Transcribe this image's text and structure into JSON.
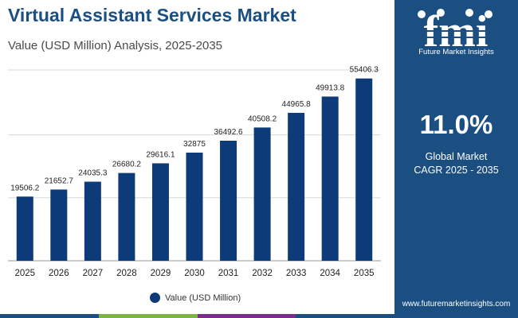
{
  "header": {
    "title": "Virtual Assistant Services Market",
    "subtitle": "Value (USD Million) Analysis, 2025-2035"
  },
  "chart_data": {
    "type": "bar",
    "categories": [
      "2025",
      "2026",
      "2027",
      "2028",
      "2029",
      "2030",
      "2031",
      "2032",
      "2033",
      "2034",
      "2035"
    ],
    "series": [
      {
        "name": "Value (USD Million)",
        "values": [
          19506.2,
          21652.7,
          24035.3,
          26680.2,
          29616.1,
          32875,
          36492.6,
          40508.2,
          44965.8,
          49913.8,
          55406.3
        ],
        "labels": [
          "19506.2",
          "21652.7",
          "24035.3",
          "26680.2",
          "29616.1",
          "32875",
          "36492.6",
          "40508.2",
          "44965.8",
          "49913.8",
          "55406.3"
        ]
      }
    ],
    "ylim": [
      0,
      58000
    ],
    "grid": true,
    "legend": "bottom"
  },
  "side_panel": {
    "brand_logo_text": "fmi",
    "brand_name": "Future Market Insights",
    "cagr_value": "11.0%",
    "cagr_line1": "Global Market",
    "cagr_line2": "CAGR 2025 - 2035",
    "website": "www.futuremarketinsights.com"
  },
  "colors": {
    "bar": "#0d3a78",
    "title": "#1b4f82",
    "panel": "#1b4f82",
    "gridline": "#d9d9d9",
    "bottom_bar": [
      "#1b4f82",
      "#7cb342",
      "#7b2d8e",
      "#1b4f82"
    ]
  }
}
